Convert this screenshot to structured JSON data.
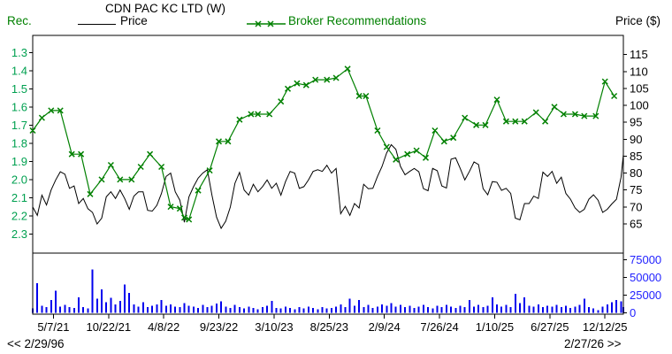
{
  "header": {
    "title": "CDN PAC KC LTD (W)",
    "left_axis_label": "Rec.",
    "right_axis_label": "Price ($)",
    "legend": [
      {
        "label": "Price",
        "color": "#000000",
        "marker": "line"
      },
      {
        "label": "Broker Recommendations",
        "color": "#008000",
        "marker": "line-x"
      }
    ]
  },
  "nav": {
    "back_label": "<< 2/29/96",
    "forward_label": "2/27/26 >>"
  },
  "colors": {
    "price_line": "#000000",
    "rec_line": "#008000",
    "rec_axis_labels": "#00A050",
    "volume_bars": "#0000EE",
    "volume_axis_labels": "#2222FF",
    "axis": "#000000",
    "date_labels": "#000000",
    "background": "#FFFFFF"
  },
  "chart_data": {
    "type": "line",
    "title": "CDN PAC KC LTD (W)",
    "period": "weekly",
    "x_axis": {
      "tick_dates": [
        "5/7/21",
        "10/22/21",
        "4/8/22",
        "9/23/22",
        "3/10/23",
        "8/25/23",
        "2/9/24",
        "7/26/24",
        "1/10/25",
        "6/27/25",
        "12/12/25"
      ],
      "tick_weeks": [
        9,
        33,
        57,
        81,
        105,
        129,
        153,
        177,
        201,
        225,
        249
      ],
      "total_weeks": 257,
      "prev_page_date": "2/29/96",
      "next_page_date": "2/27/26"
    },
    "left_axis": {
      "label": "Rec.",
      "min": 1.3,
      "max": 2.3,
      "direction": "min-at-top",
      "ticks": [
        1.3,
        1.4,
        1.5,
        1.6,
        1.7,
        1.8,
        1.9,
        2.0,
        2.1,
        2.2,
        2.3
      ]
    },
    "right_axis": {
      "label": "Price ($)",
      "min": 65,
      "max": 115,
      "ticks": [
        115,
        110,
        105,
        100,
        95,
        90,
        85,
        80,
        75,
        70,
        65
      ]
    },
    "volume_axis": {
      "tick_values": [
        75000,
        50000,
        25000,
        0
      ],
      "tick_labels": [
        "75000",
        "50000",
        "25000",
        "0"
      ]
    },
    "series": [
      {
        "name": "Price",
        "axis": "right",
        "color": "#000000",
        "x_start_week": 0,
        "x_step_weeks": 2,
        "values": [
          70,
          67.5,
          73.5,
          70.6,
          75,
          78,
          80.4,
          79.7,
          75.5,
          76.2,
          71,
          72.5,
          69.5,
          68.4,
          65,
          66.7,
          73,
          74.5,
          72.5,
          75,
          72.5,
          69.3,
          73.2,
          74.5,
          74.5,
          69,
          68.8,
          70.5,
          74,
          79,
          80,
          74.5,
          72,
          65.5,
          73,
          76,
          78.5,
          80,
          81,
          73.5,
          67,
          63.7,
          65.8,
          70,
          77,
          80.2,
          75,
          73.5,
          76.7,
          74.5,
          76,
          78,
          75.5,
          77,
          73.5,
          77.5,
          80.5,
          80,
          75.5,
          76,
          78,
          80.5,
          81,
          80.5,
          82.3,
          80,
          81.4,
          68,
          70.2,
          67.5,
          71,
          69.7,
          76.7,
          75.4,
          75.5,
          79,
          82,
          86,
          88.4,
          87,
          82,
          79.5,
          80.5,
          81.4,
          80.4,
          75.4,
          74.8,
          81.4,
          80.7,
          76.2,
          75.6,
          84.1,
          84.5,
          81.4,
          78,
          80.5,
          83.3,
          82.5,
          75.4,
          73.6,
          77.5,
          77.3,
          74.9,
          75.5,
          74,
          66.7,
          66.2,
          71,
          71,
          73.2,
          72.5,
          80.3,
          79,
          80.5,
          77,
          78.8,
          74,
          72.3,
          69.7,
          68.4,
          69.3,
          72.3,
          73.6,
          72,
          68.4,
          69.3,
          70.9,
          72.3,
          78.8,
          85.5
        ]
      },
      {
        "name": "Broker Recommendations",
        "axis": "left",
        "color": "#008000",
        "marker": "x",
        "points": [
          [
            0,
            1.73
          ],
          [
            4,
            1.66
          ],
          [
            8,
            1.62
          ],
          [
            12,
            1.62
          ],
          [
            17,
            1.86
          ],
          [
            21,
            1.86
          ],
          [
            25,
            2.08
          ],
          [
            30,
            2.0
          ],
          [
            34,
            1.92
          ],
          [
            38,
            2.0
          ],
          [
            43,
            2.0
          ],
          [
            47,
            1.93
          ],
          [
            51,
            1.86
          ],
          [
            56,
            1.93
          ],
          [
            60,
            2.15
          ],
          [
            64,
            2.16
          ],
          [
            66,
            2.21
          ],
          [
            68,
            2.22
          ],
          [
            72,
            2.06
          ],
          [
            77,
            1.95
          ],
          [
            81,
            1.79
          ],
          [
            85,
            1.79
          ],
          [
            90,
            1.67
          ],
          [
            95,
            1.64
          ],
          [
            98,
            1.64
          ],
          [
            103,
            1.64
          ],
          [
            108,
            1.57
          ],
          [
            111,
            1.5
          ],
          [
            115,
            1.47
          ],
          [
            119,
            1.48
          ],
          [
            123,
            1.45
          ],
          [
            128,
            1.45
          ],
          [
            132,
            1.44
          ],
          [
            137,
            1.39
          ],
          [
            142,
            1.54
          ],
          [
            145,
            1.54
          ],
          [
            150,
            1.73
          ],
          [
            154,
            1.82
          ],
          [
            158,
            1.89
          ],
          [
            163,
            1.86
          ],
          [
            167,
            1.84
          ],
          [
            171,
            1.88
          ],
          [
            175,
            1.73
          ],
          [
            179,
            1.79
          ],
          [
            183,
            1.77
          ],
          [
            188,
            1.66
          ],
          [
            193,
            1.7
          ],
          [
            197,
            1.7
          ],
          [
            202,
            1.56
          ],
          [
            206,
            1.68
          ],
          [
            210,
            1.68
          ],
          [
            214,
            1.68
          ],
          [
            219,
            1.63
          ],
          [
            223,
            1.68
          ],
          [
            227,
            1.6
          ],
          [
            231,
            1.64
          ],
          [
            236,
            1.64
          ],
          [
            240,
            1.65
          ],
          [
            245,
            1.65
          ],
          [
            249,
            1.46
          ],
          [
            253,
            1.54
          ]
        ]
      },
      {
        "name": "Volume",
        "axis": "volume",
        "color": "#0000EE",
        "x_start_week": 0,
        "x_step_weeks": 2,
        "values": [
          6000,
          42000,
          10000,
          8000,
          18000,
          31000,
          9000,
          11000,
          8000,
          7000,
          22000,
          8000,
          6000,
          61000,
          20000,
          33000,
          15000,
          21000,
          12000,
          17000,
          40000,
          28000,
          12000,
          9000,
          15000,
          8000,
          10000,
          12000,
          18000,
          10000,
          12000,
          9000,
          8000,
          14000,
          10000,
          9000,
          7000,
          11000,
          8000,
          10000,
          13000,
          16000,
          9000,
          7000,
          11000,
          8000,
          6000,
          9000,
          7000,
          5000,
          8000,
          10000,
          17000,
          7000,
          6000,
          9000,
          7000,
          5000,
          8000,
          6000,
          9000,
          7000,
          5000,
          8000,
          6000,
          7000,
          9000,
          12000,
          8000,
          20000,
          10000,
          18000,
          8000,
          11000,
          7000,
          9000,
          12000,
          10000,
          14000,
          9000,
          11000,
          8000,
          10000,
          7000,
          9000,
          11000,
          8000,
          6000,
          10000,
          8000,
          11000,
          9000,
          7000,
          10000,
          8000,
          18000,
          9000,
          11000,
          8000,
          10000,
          22000,
          12000,
          9000,
          11000,
          8000,
          27000,
          14000,
          22000,
          10000,
          9000,
          12000,
          8000,
          10000,
          9000,
          11000,
          8000,
          10000,
          7000,
          9000,
          11000,
          20000,
          8000,
          6000,
          4000,
          9000,
          12000,
          15000,
          18000,
          16000,
          8000
        ]
      }
    ]
  }
}
